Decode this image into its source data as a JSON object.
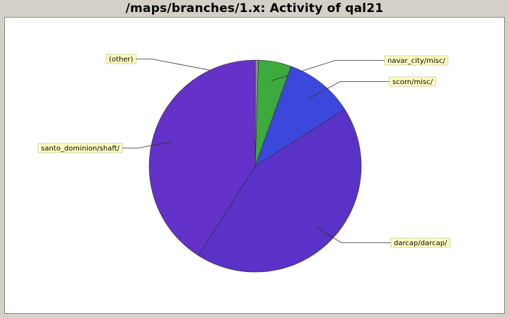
{
  "chart_data": {
    "type": "pie",
    "title": "/maps/branches/1.x: Activity of qal21",
    "slices": [
      {
        "label": "(other)",
        "value": 0.5,
        "color": "#8c8c8c"
      },
      {
        "label": "navar_city/misc/",
        "value": 5.0,
        "color": "#3caa3c"
      },
      {
        "label": "scorn/misc/",
        "value": 10.5,
        "color": "#3c48dc"
      },
      {
        "label": "darcap/darcap/",
        "value": 43.0,
        "color": "#5a32c8"
      },
      {
        "label": "santo_dominion/shaft/",
        "value": 41.0,
        "color": "#6432c8"
      }
    ],
    "start_angle_deg": 90,
    "direction": "clockwise",
    "label_style": "yellow callout boxes with leader lines"
  }
}
